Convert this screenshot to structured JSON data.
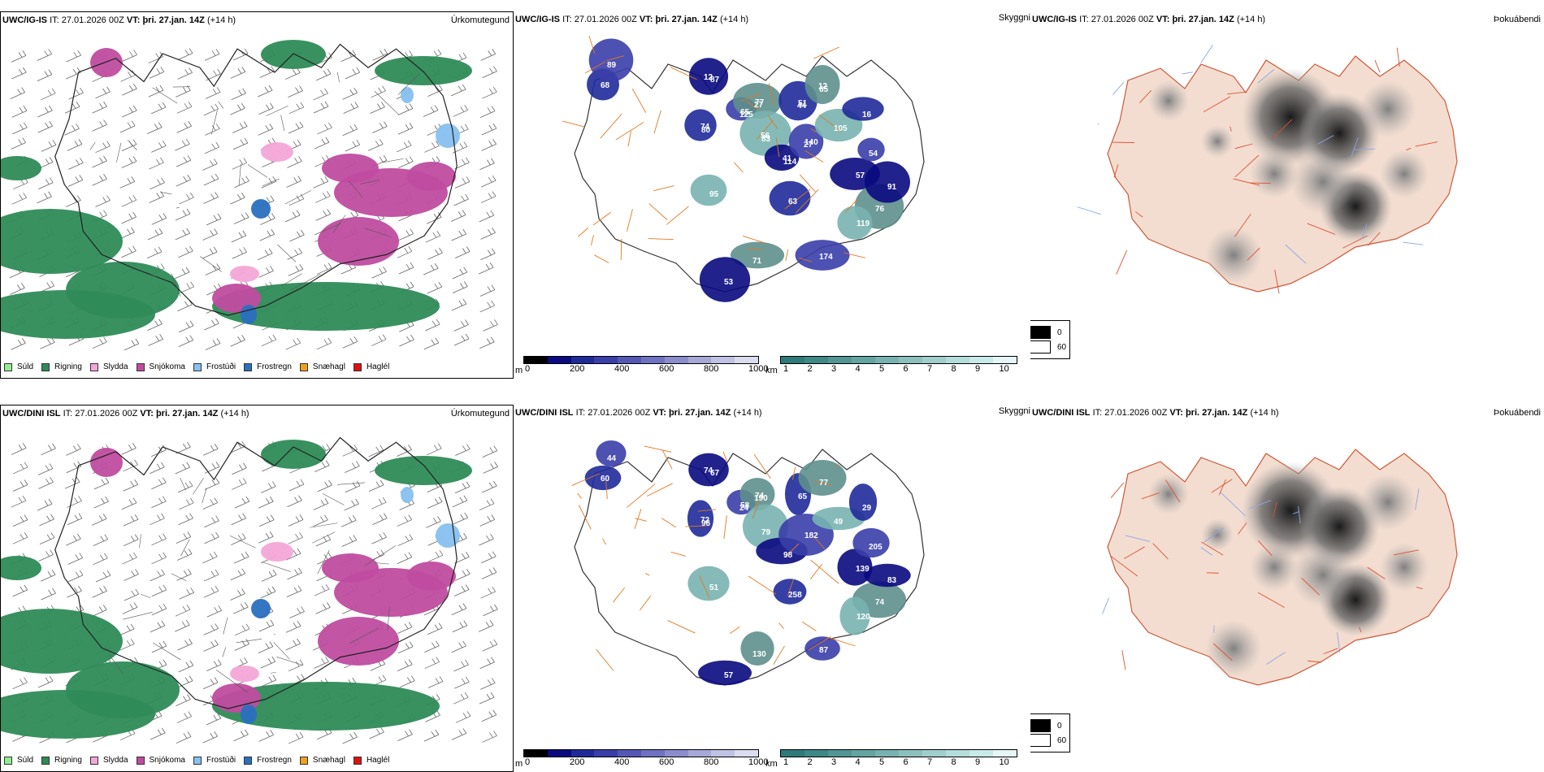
{
  "rows": [
    {
      "model": "UWC/IG-IS",
      "it_label": "IT:",
      "it_value": "27.01.2026 00Z",
      "vt_label": "VT:",
      "vt_value": "þri. 27.jan. 14Z",
      "lead": "(+14 h)",
      "values_cloud": [
        "12",
        "80",
        "65",
        "77",
        "83",
        "114",
        "51",
        "140",
        "65",
        "105",
        "57",
        "16",
        "54",
        "76",
        "119",
        "91",
        "63",
        "174",
        "71",
        "95",
        "53",
        "68",
        "89",
        "87",
        "74",
        "125",
        "27",
        "56",
        "41",
        "44",
        "27",
        "12"
      ]
    },
    {
      "model": "UWC/DINI ISL",
      "it_label": "IT:",
      "it_value": "27.01.2026 00Z",
      "vt_label": "VT:",
      "vt_value": "þri. 27.jan. 14Z",
      "lead": "(+14 h)",
      "values_cloud": [
        "74",
        "96",
        "58",
        "74",
        "79",
        "98",
        "65",
        "182",
        "77",
        "49",
        "139",
        "29",
        "205",
        "74",
        "120",
        "83",
        "258",
        "87",
        "130",
        "51",
        "57",
        "60",
        "44",
        "67",
        "72",
        "24",
        "190"
      ]
    }
  ],
  "panel_titles": {
    "precip": "Úrkomutegund",
    "cloud": "Skyggni",
    "fog": "Þokuábendi"
  },
  "precip_legend": [
    {
      "label": "Súld",
      "color": "#90ee90"
    },
    {
      "label": "Rigning",
      "color": "#2e8b57"
    },
    {
      "label": "Slydda",
      "color": "#f4a6d7"
    },
    {
      "label": "Snjókoma",
      "color": "#c04ca0"
    },
    {
      "label": "Frostúði",
      "color": "#87c0f0"
    },
    {
      "label": "Frostregn",
      "color": "#2a6fc0"
    },
    {
      "label": "Snæhagl",
      "color": "#f0a020"
    },
    {
      "label": "Haglél",
      "color": "#e01010"
    }
  ],
  "ceiling_bar": {
    "unit": "m",
    "ticks": [
      "0",
      "200",
      "400",
      "600",
      "800",
      "1000"
    ],
    "colors": [
      "#000000",
      "#0a0a80",
      "#1f2a9a",
      "#3a3ea8",
      "#5358b4",
      "#6e72c0",
      "#8a8ccc",
      "#a6a8d8",
      "#c0c2e4",
      "#dcdcf0"
    ]
  },
  "vis_bar": {
    "unit": "km",
    "ticks": [
      "1",
      "2",
      "3",
      "4",
      "5",
      "6",
      "7",
      "8",
      "9",
      "10"
    ],
    "colors": [
      "#2e7a78",
      "#3e8886",
      "#519694",
      "#64a4a2",
      "#78b2b0",
      "#8cc0be",
      "#a0cecc",
      "#b4dcda",
      "#c8eae8",
      "#e6f6f5"
    ]
  },
  "fog_legend": [
    {
      "label": "0",
      "color": "#000000"
    },
    {
      "label": "60",
      "color": "#ffffff"
    }
  ]
}
